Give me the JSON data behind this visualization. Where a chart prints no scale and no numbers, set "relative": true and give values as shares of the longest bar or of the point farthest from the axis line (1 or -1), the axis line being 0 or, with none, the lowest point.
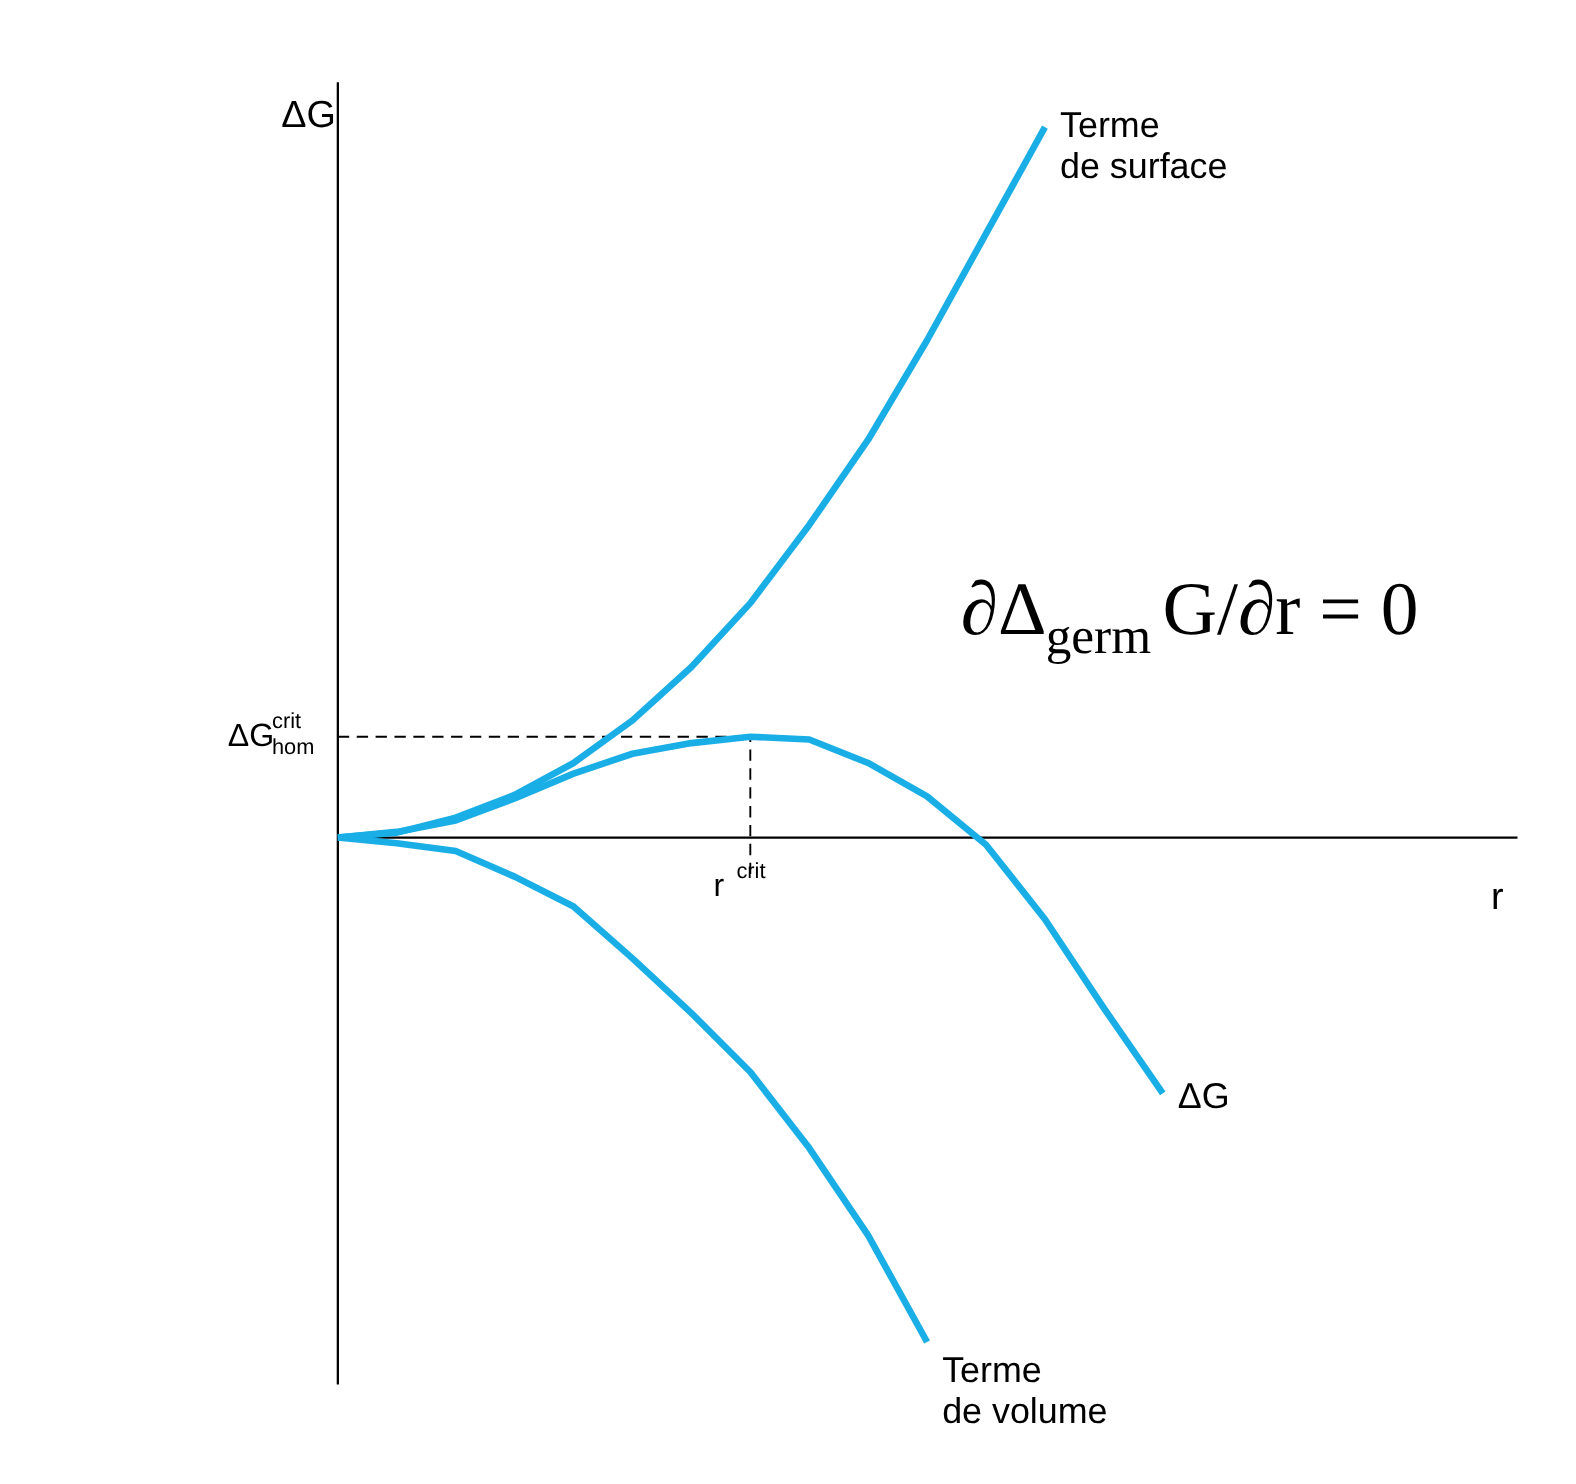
{
  "chart_data": {
    "type": "line",
    "relative": true,
    "ylabel": "ΔG",
    "categories": [
      null,
      null,
      null,
      null,
      null,
      null,
      null,
      null,
      null,
      null,
      null,
      null,
      null,
      null,
      null
    ],
    "series": [
      {
        "name": "Terme de surface",
        "color": "#1aaee6",
        "values": [
          0,
          0.007,
          0.028,
          0.06,
          0.105,
          0.165,
          0.24,
          0.33,
          0.44,
          0.56,
          0.7,
          0.85,
          1.0,
          null,
          null
        ]
      },
      {
        "name": "ΔG",
        "color": "#1aaee6",
        "values": [
          0,
          0.008,
          0.024,
          0.055,
          0.09,
          0.118,
          0.133,
          0.142,
          0.138,
          0.105,
          0.058,
          -0.01,
          -0.115,
          -0.24,
          -0.36
        ]
      },
      {
        "name": "Terme de volume",
        "color": "#1aaee6",
        "values": [
          0,
          -0.008,
          -0.019,
          -0.055,
          -0.097,
          -0.17,
          -0.247,
          -0.33,
          -0.437,
          -0.56,
          -0.71,
          null,
          null,
          null,
          null
        ]
      }
    ],
    "ref_lines": [
      {
        "axis": "y",
        "value": 0.142,
        "label": "ΔG$^{crit}$$_{hom}$",
        "line_style": "dashed"
      }
    ],
    "annotations": [
      "∂Δ$_{germ}$G/∂r = 0",
      "r$^{crit}$",
      "r"
    ],
    "line_style": "solid"
  }
}
